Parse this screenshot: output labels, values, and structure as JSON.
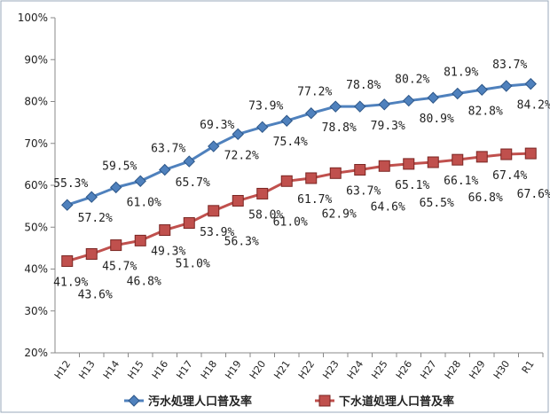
{
  "chart_data": {
    "type": "line",
    "categories": [
      "H12",
      "H13",
      "H14",
      "H15",
      "H16",
      "H17",
      "H18",
      "H19",
      "H20",
      "H21",
      "H22",
      "H23",
      "H24",
      "H25",
      "H26",
      "H27",
      "H28",
      "H29",
      "H30",
      "R1"
    ],
    "series": [
      {
        "name": "汚水処理人口普及率",
        "color": "#4f81bd",
        "marker": "diamond",
        "values": [
          55.3,
          57.2,
          59.5,
          61.0,
          63.7,
          65.7,
          69.3,
          72.2,
          73.9,
          75.4,
          77.2,
          78.8,
          78.8,
          79.3,
          80.2,
          80.9,
          81.9,
          82.8,
          83.7,
          84.2
        ],
        "value_labels": [
          "55.3%",
          "57.2%",
          "59.5%",
          "61.0%",
          "63.7%",
          "65.7%",
          "69.3%",
          "72.2%",
          "73.9%",
          "75.4%",
          "77.2%",
          "78.8%",
          "78.8%",
          "79.3%",
          "80.2%",
          "80.9%",
          "81.9%",
          "82.8%",
          "83.7%",
          "84.2%"
        ]
      },
      {
        "name": "下水道処理人口普及率",
        "color": "#c0504d",
        "marker": "square",
        "values": [
          41.9,
          43.6,
          45.7,
          46.8,
          49.3,
          51.0,
          53.9,
          56.3,
          58.0,
          61.0,
          61.7,
          62.9,
          63.7,
          64.6,
          65.1,
          65.5,
          66.1,
          66.8,
          67.4,
          67.6
        ],
        "value_labels": [
          "41.9%",
          "43.6%",
          "45.7%",
          "46.8%",
          "49.3%",
          "51.0%",
          "53.9%",
          "56.3%",
          "58.0%",
          "61.0%",
          "61.7%",
          "62.9%",
          "63.7%",
          "64.6%",
          "65.1%",
          "65.5%",
          "66.1%",
          "66.8%",
          "67.4%",
          "67.6%"
        ]
      }
    ],
    "ylim": [
      20,
      100
    ],
    "yticks": [
      {
        "value": 20,
        "label": "20%"
      },
      {
        "value": 30,
        "label": "30%"
      },
      {
        "value": 40,
        "label": "40%"
      },
      {
        "value": 50,
        "label": "50%"
      },
      {
        "value": 60,
        "label": "60%"
      },
      {
        "value": 70,
        "label": "70%"
      },
      {
        "value": 80,
        "label": "80%"
      },
      {
        "value": 90,
        "label": "90%"
      },
      {
        "value": 100,
        "label": "100%"
      }
    ],
    "legend": "bottom"
  }
}
